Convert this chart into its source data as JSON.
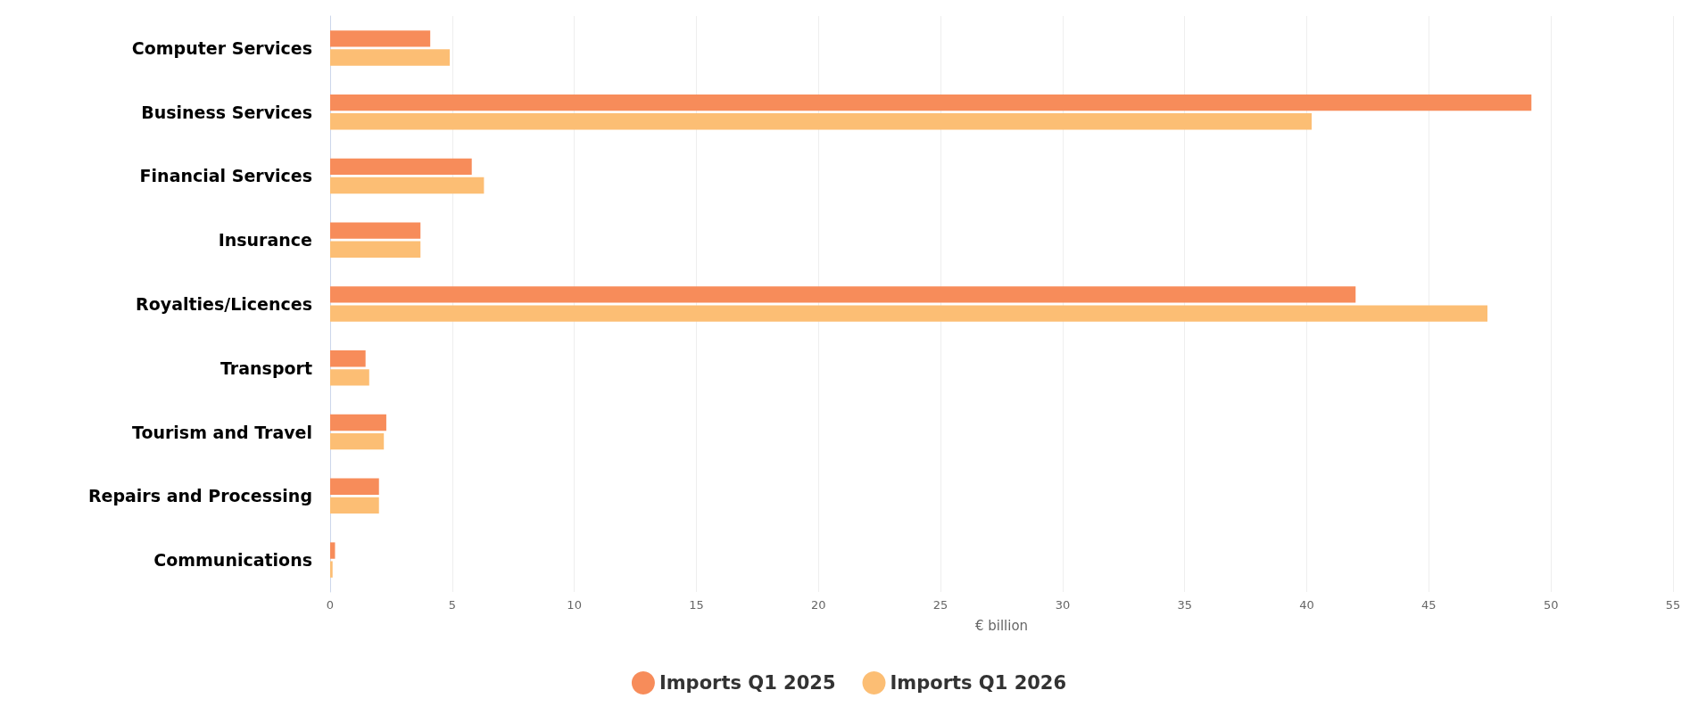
{
  "chart_data": {
    "type": "bar",
    "orientation": "horizontal",
    "categories": [
      "Computer Services",
      "Business Services",
      "Financial Services",
      "Insurance",
      "Royalties/Licences",
      "Transport",
      "Tourism and Travel",
      "Repairs and Processing",
      "Communications"
    ],
    "series": [
      {
        "name": "Imports Q1 2025",
        "color": "#f78c5a",
        "values": [
          4.1,
          49.2,
          5.8,
          3.7,
          42.0,
          1.45,
          2.3,
          2.0,
          0.2
        ]
      },
      {
        "name": "Imports Q1 2026",
        "color": "#fcbe74",
        "values": [
          4.9,
          40.2,
          6.3,
          3.7,
          47.4,
          1.6,
          2.2,
          2.0,
          0.1
        ]
      }
    ],
    "xlabel": "€ billion",
    "xlim": [
      0,
      55
    ],
    "xticks": [
      0,
      5,
      10,
      15,
      20,
      25,
      30,
      35,
      40,
      45,
      50,
      55
    ],
    "grid": "x",
    "legend": "bottom"
  }
}
